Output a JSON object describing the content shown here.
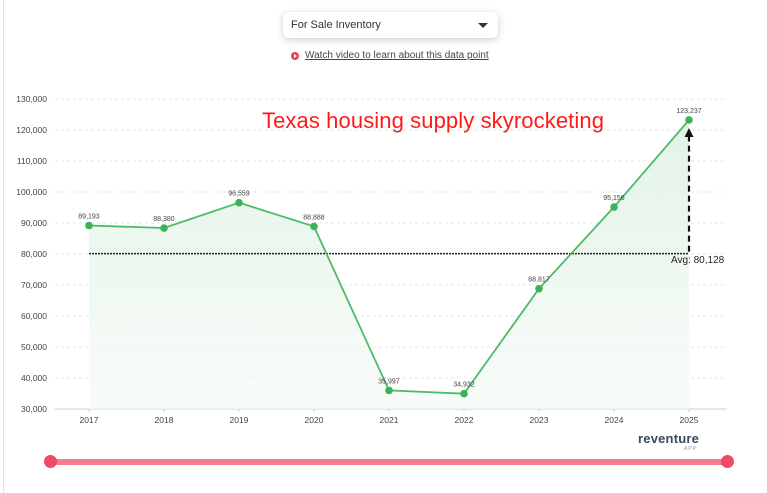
{
  "header": {
    "metric_select": {
      "selected": "For Sale Inventory",
      "icon": "caret-down-icon"
    },
    "video_link": {
      "label": "Watch video to learn about this data point",
      "icon": "play-circle-icon"
    }
  },
  "annotation": {
    "headline": "Texas housing supply skyrocketing",
    "avg_label": "Avg: 80,128",
    "headline_color": "#ff1a1a"
  },
  "brand": {
    "name": "reventure",
    "sub": "APP"
  },
  "colors": {
    "line": "#4cbb68",
    "point": "#3cb35a",
    "fill": "#e9f6ec",
    "slider": "#f57d91",
    "slider_handle": "#ef4a66"
  },
  "chart_data": {
    "type": "line",
    "title": "Texas housing supply skyrocketing",
    "series_name": "For Sale Inventory",
    "categories": [
      "2017",
      "2018",
      "2019",
      "2020",
      "2021",
      "2022",
      "2023",
      "2024",
      "2025"
    ],
    "values": [
      89193,
      88380,
      96559,
      88888,
      35997,
      34932,
      68817,
      95156,
      123237
    ],
    "value_labels": [
      "89,193",
      "88,380",
      "96,559",
      "88,888",
      "35,997",
      "34,932",
      "68,817",
      "95,156",
      "123,237"
    ],
    "average": 80128,
    "xlabel": "",
    "ylabel": "",
    "ylim": [
      30000,
      130000
    ],
    "yticks": [
      30000,
      40000,
      50000,
      60000,
      70000,
      80000,
      90000,
      100000,
      110000,
      120000,
      130000
    ],
    "ytick_labels": [
      "30,000",
      "40,000",
      "50,000",
      "60,000",
      "70,000",
      "80,000",
      "90,000",
      "100,000",
      "110,000",
      "120,000",
      "130,000"
    ],
    "grid": true,
    "area_fill": true,
    "legend": "none"
  }
}
